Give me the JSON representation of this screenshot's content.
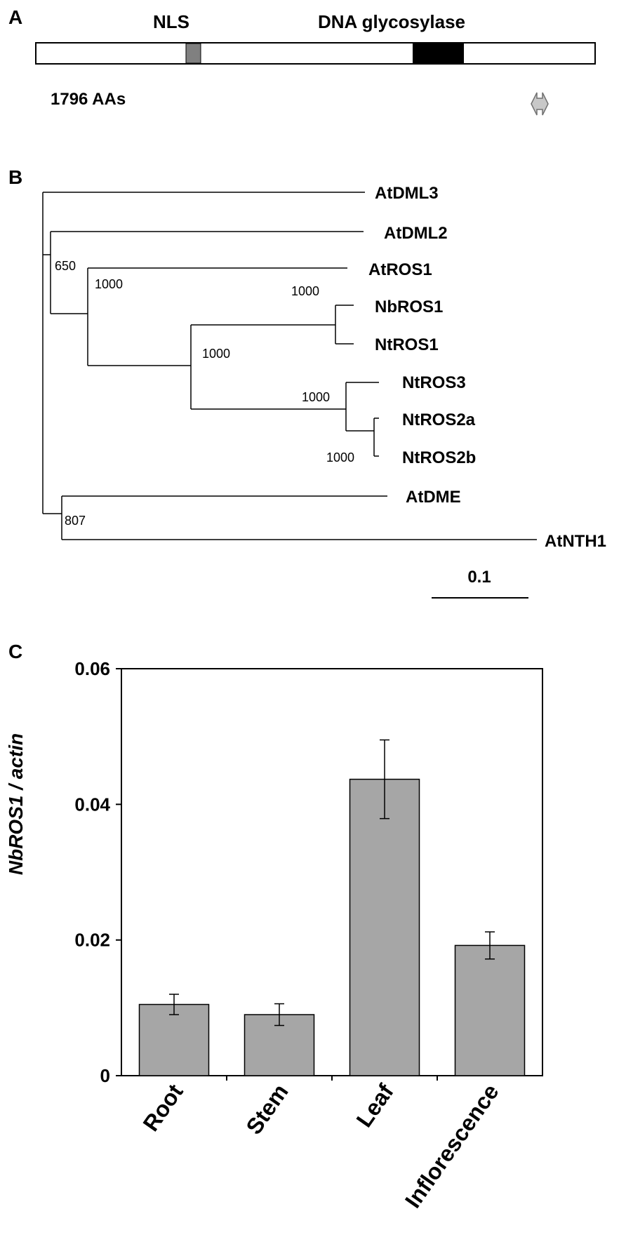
{
  "panel_a": {
    "letter": "A",
    "nls_label": "NLS",
    "glycosylase_label": "DNA glycosylase",
    "length_label": "1796 AAs",
    "colors": {
      "nls": "#808080",
      "glycosylase": "#000000",
      "arrow": "#c8c8c8"
    },
    "arrow_icon": "double-arrow-icon"
  },
  "panel_b": {
    "letter": "B",
    "scale_label": "0.1",
    "taxa": [
      "AtDML3",
      "AtDML2",
      "AtROS1",
      "NbROS1",
      "NtROS1",
      "NtROS3",
      "NtROS2a",
      "NtROS2b",
      "AtDME",
      "AtNTH1"
    ],
    "bootstrap": [
      "650",
      "1000",
      "1000",
      "1000",
      "1000",
      "1000",
      "807"
    ]
  },
  "panel_c": {
    "letter": "C",
    "chart_data": {
      "type": "bar",
      "categories": [
        "Root",
        "Stem",
        "Leaf",
        "Inflorescence"
      ],
      "values": [
        0.0105,
        0.009,
        0.0437,
        0.0192
      ],
      "errors": [
        0.0015,
        0.0016,
        0.0058,
        0.002
      ],
      "ylabel": "NbROS1 / actin",
      "ylim": [
        0,
        0.06
      ],
      "yticks": [
        "0",
        "0.02",
        "0.04",
        "0.06"
      ],
      "ytick_values": [
        0,
        0.02,
        0.04,
        0.06
      ],
      "bar_color": "#a6a6a6",
      "grid": false
    }
  }
}
